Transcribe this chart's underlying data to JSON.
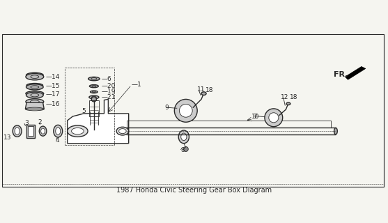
{
  "title": "1987 Honda Civic Steering Gear Box Diagram",
  "bg_color": "#f5f5f0",
  "line_color": "#2a2a2a",
  "figsize": [
    5.57,
    3.2
  ],
  "dpi": 100
}
